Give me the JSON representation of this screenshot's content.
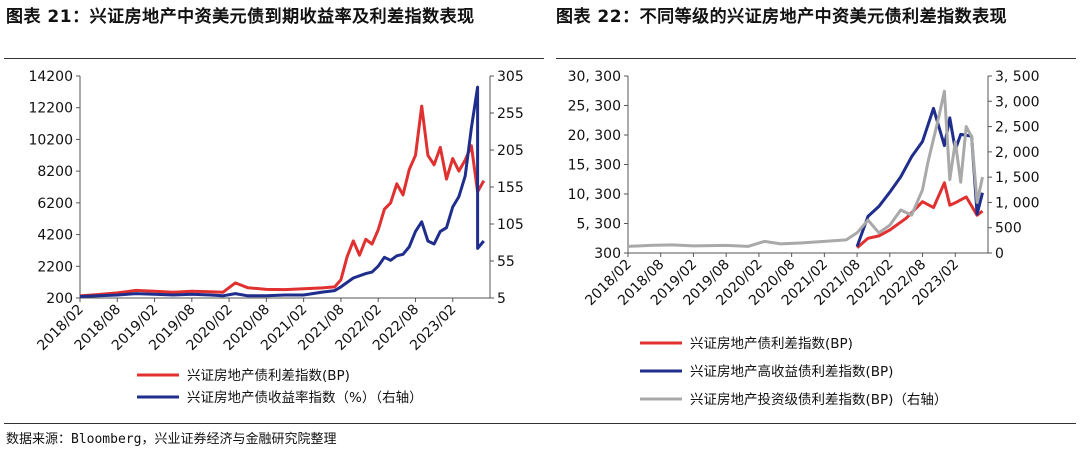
{
  "titles": {
    "left": "图表 21：兴证房地产中资美元债到期收益率及利差指数表现",
    "right": "图表 22：不同等级的兴证房地产中资美元债利差指数表现"
  },
  "source": "数据来源：Bloomberg，兴业证券经济与金融研究院整理",
  "colors": {
    "red": "#e03030",
    "navy": "#1f2d8c",
    "gray": "#a9a9a9"
  },
  "chart_data": [
    {
      "type": "line",
      "x_ticks": [
        "2018/02",
        "2018/08",
        "2019/02",
        "2019/08",
        "2020/02",
        "2020/08",
        "2021/02",
        "2021/08",
        "2022/02",
        "2022/08",
        "2023/02"
      ],
      "y_left": {
        "ticks": [
          200,
          2200,
          4200,
          6200,
          8200,
          10200,
          12200,
          14200
        ],
        "ylim": [
          200,
          14200
        ]
      },
      "y_right": {
        "ticks": [
          5,
          55,
          105,
          155,
          205,
          255,
          305
        ],
        "ylim": [
          5,
          305
        ]
      },
      "series": [
        {
          "name": "兴证房地产债利差指数(BP)",
          "color": "#e03030",
          "axis": "left",
          "points": [
            [
              "2018/02",
              330
            ],
            [
              "2018/05",
              420
            ],
            [
              "2018/08",
              520
            ],
            [
              "2018/11",
              680
            ],
            [
              "2019/02",
              620
            ],
            [
              "2019/05",
              560
            ],
            [
              "2019/08",
              620
            ],
            [
              "2019/11",
              600
            ],
            [
              "2020/01",
              560
            ],
            [
              "2020/03",
              1150
            ],
            [
              "2020/05",
              850
            ],
            [
              "2020/08",
              740
            ],
            [
              "2020/11",
              730
            ],
            [
              "2021/02",
              780
            ],
            [
              "2021/05",
              840
            ],
            [
              "2021/07",
              900
            ],
            [
              "2021/08",
              1350
            ],
            [
              "2021/09",
              2800
            ],
            [
              "2021/10",
              3800
            ],
            [
              "2021/11",
              2900
            ],
            [
              "2021/12",
              3900
            ],
            [
              "2022/01",
              3600
            ],
            [
              "2022/02",
              4500
            ],
            [
              "2022/03",
              5800
            ],
            [
              "2022/04",
              6200
            ],
            [
              "2022/05",
              7400
            ],
            [
              "2022/06",
              6700
            ],
            [
              "2022/07",
              8300
            ],
            [
              "2022/08",
              9200
            ],
            [
              "2022/09",
              12300
            ],
            [
              "2022/10",
              9200
            ],
            [
              "2022/11",
              8600
            ],
            [
              "2022/12",
              9700
            ],
            [
              "2023/01",
              7700
            ],
            [
              "2023/02",
              9000
            ],
            [
              "2023/03",
              8200
            ],
            [
              "2023/04",
              8900
            ],
            [
              "2023/05",
              9800
            ],
            [
              "2023/06",
              6900
            ],
            [
              "2023/07",
              7600
            ]
          ]
        },
        {
          "name": "兴证房地产债收益率指数（%）（右轴）",
          "color": "#1f2d8c",
          "axis": "right",
          "points": [
            [
              "2018/02",
              7
            ],
            [
              "2018/05",
              8
            ],
            [
              "2018/08",
              9
            ],
            [
              "2018/11",
              11
            ],
            [
              "2019/02",
              10
            ],
            [
              "2019/05",
              9
            ],
            [
              "2019/08",
              10
            ],
            [
              "2019/11",
              9
            ],
            [
              "2020/01",
              8
            ],
            [
              "2020/03",
              11
            ],
            [
              "2020/05",
              8
            ],
            [
              "2020/08",
              8
            ],
            [
              "2020/11",
              9
            ],
            [
              "2021/02",
              9
            ],
            [
              "2021/05",
              13
            ],
            [
              "2021/07",
              15
            ],
            [
              "2021/08",
              20
            ],
            [
              "2021/10",
              32
            ],
            [
              "2021/12",
              38
            ],
            [
              "2022/01",
              40
            ],
            [
              "2022/02",
              48
            ],
            [
              "2022/03",
              60
            ],
            [
              "2022/04",
              56
            ],
            [
              "2022/05",
              62
            ],
            [
              "2022/06",
              64
            ],
            [
              "2022/07",
              74
            ],
            [
              "2022/08",
              95
            ],
            [
              "2022/09",
              108
            ],
            [
              "2022/10",
              82
            ],
            [
              "2022/11",
              78
            ],
            [
              "2022/12",
              95
            ],
            [
              "2023/01",
              100
            ],
            [
              "2023/02",
              128
            ],
            [
              "2023/03",
              142
            ],
            [
              "2023/04",
              170
            ],
            [
              "2023/05",
              235
            ],
            [
              "2023/06",
              290
            ],
            [
              "2023/06",
              72
            ],
            [
              "2023/07",
              82
            ]
          ]
        }
      ]
    },
    {
      "type": "line",
      "x_ticks": [
        "2018/02",
        "2018/08",
        "2019/02",
        "2019/08",
        "2020/02",
        "2020/08",
        "2021/02",
        "2021/08",
        "2022/02",
        "2022/08",
        "2023/02"
      ],
      "y_left": {
        "ticks": [
          "300",
          "5, 300",
          "10, 300",
          "15, 300",
          "20, 300",
          "25, 300",
          "30, 300"
        ],
        "ylim": [
          300,
          30300
        ]
      },
      "y_right": {
        "ticks": [
          "0",
          "500",
          "1, 000",
          "1, 500",
          "2, 000",
          "2, 500",
          "3, 000",
          "3, 500"
        ],
        "ylim": [
          0,
          3500
        ]
      },
      "series": [
        {
          "name": "兴证房地产债利差指数(BP)",
          "color": "#e03030",
          "axis": "left",
          "points": [
            [
              "2021/08",
              1200
            ],
            [
              "2021/10",
              2800
            ],
            [
              "2021/12",
              3200
            ],
            [
              "2022/02",
              4200
            ],
            [
              "2022/05",
              6200
            ],
            [
              "2022/08",
              9000
            ],
            [
              "2022/10",
              8000
            ],
            [
              "2022/12",
              12200
            ],
            [
              "2023/01",
              8400
            ],
            [
              "2023/02",
              8800
            ],
            [
              "2023/04",
              9800
            ],
            [
              "2023/06",
              6700
            ],
            [
              "2023/07",
              7400
            ]
          ]
        },
        {
          "name": "兴证房地产高收益债利差指数(BP)",
          "color": "#1f2d8c",
          "axis": "left",
          "points": [
            [
              "2021/08",
              1400
            ],
            [
              "2021/10",
              6500
            ],
            [
              "2021/12",
              8200
            ],
            [
              "2022/02",
              10600
            ],
            [
              "2022/04",
              13200
            ],
            [
              "2022/06",
              16600
            ],
            [
              "2022/08",
              19200
            ],
            [
              "2022/10",
              24800
            ],
            [
              "2022/12",
              18500
            ],
            [
              "2023/01",
              23200
            ],
            [
              "2023/02",
              17800
            ],
            [
              "2023/03",
              20400
            ],
            [
              "2023/05",
              20100
            ],
            [
              "2023/06",
              6900
            ],
            [
              "2023/07",
              10500
            ]
          ]
        },
        {
          "name": "兴证房地产投资级债利差指数(BP)（右轴）",
          "color": "#a9a9a9",
          "axis": "right",
          "points": [
            [
              "2018/02",
              130
            ],
            [
              "2018/06",
              150
            ],
            [
              "2018/10",
              160
            ],
            [
              "2019/02",
              140
            ],
            [
              "2019/08",
              150
            ],
            [
              "2019/12",
              130
            ],
            [
              "2020/03",
              230
            ],
            [
              "2020/06",
              180
            ],
            [
              "2020/10",
              200
            ],
            [
              "2021/02",
              230
            ],
            [
              "2021/06",
              260
            ],
            [
              "2021/08",
              400
            ],
            [
              "2021/10",
              650
            ],
            [
              "2021/12",
              400
            ],
            [
              "2022/02",
              550
            ],
            [
              "2022/04",
              850
            ],
            [
              "2022/06",
              750
            ],
            [
              "2022/08",
              1250
            ],
            [
              "2022/09",
              1800
            ],
            [
              "2022/11",
              2700
            ],
            [
              "2022/12",
              3200
            ],
            [
              "2023/01",
              1450
            ],
            [
              "2023/02",
              2200
            ],
            [
              "2023/03",
              1400
            ],
            [
              "2023/04",
              2500
            ],
            [
              "2023/05",
              2300
            ],
            [
              "2023/06",
              1000
            ],
            [
              "2023/07",
              1500
            ]
          ]
        }
      ]
    }
  ]
}
